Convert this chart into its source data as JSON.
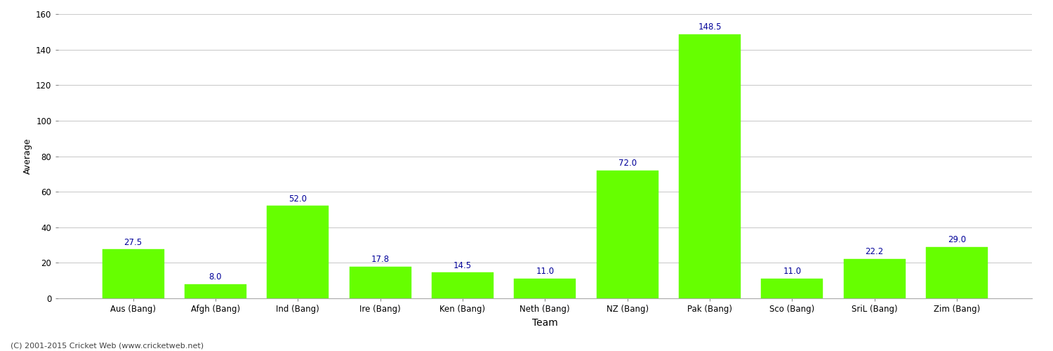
{
  "categories": [
    "Aus (Bang)",
    "Afgh (Bang)",
    "Ind (Bang)",
    "Ire (Bang)",
    "Ken (Bang)",
    "Neth (Bang)",
    "NZ (Bang)",
    "Pak (Bang)",
    "Sco (Bang)",
    "SriL (Bang)",
    "Zim (Bang)"
  ],
  "values": [
    27.5,
    8.0,
    52.0,
    17.8,
    14.5,
    11.0,
    72.0,
    148.5,
    11.0,
    22.2,
    29.0
  ],
  "bar_color": "#66ff00",
  "bar_edge_color": "#66ff00",
  "value_label_color": "#000099",
  "value_label_fontsize": 8.5,
  "xlabel": "Team",
  "ylabel": "Average",
  "xlabel_fontsize": 10,
  "ylabel_fontsize": 9,
  "yticks": [
    0,
    20,
    40,
    60,
    80,
    100,
    120,
    140,
    160
  ],
  "ylim": [
    0,
    160
  ],
  "grid_color": "#cccccc",
  "background_color": "#ffffff",
  "tick_label_fontsize": 8.5,
  "footnote": "(C) 2001-2015 Cricket Web (www.cricketweb.net)",
  "footnote_fontsize": 8,
  "footnote_color": "#444444"
}
